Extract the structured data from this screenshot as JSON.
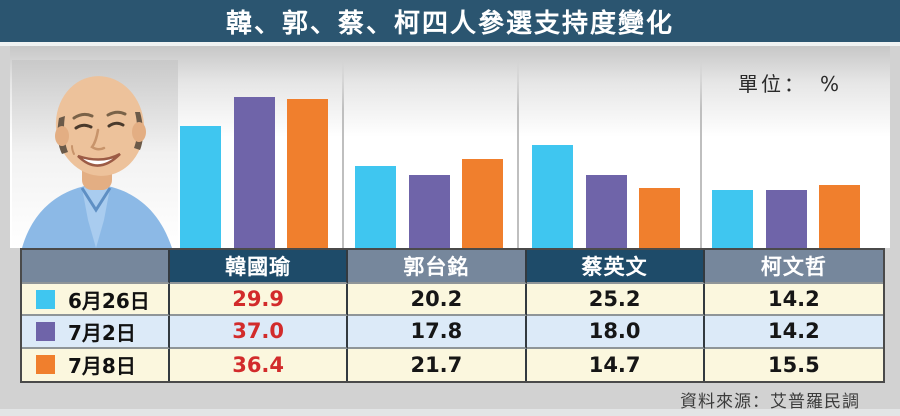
{
  "title": "韓、郭、蔡、柯四人參選支持度變化",
  "unit_label": "單位：　%",
  "source": "資料來源：艾普羅民調",
  "colors": {
    "titlebar_bg": "#2B5570",
    "header_dark": "#1E4B69",
    "header_slate": "#76879C",
    "row_cream": "#FBF7DE",
    "row_blue": "#DCEAF8",
    "highlight_value": "#D22B2B",
    "series_cyan": "#3FC6F0",
    "series_purple": "#6F64A9",
    "series_orange": "#F07F2D"
  },
  "portrait_alt": "韓國瑜照片",
  "chart_data": {
    "type": "bar",
    "title": "韓、郭、蔡、柯四人參選支持度變化",
    "unit": "%",
    "categories": [
      "韓國瑜",
      "郭台銘",
      "蔡英文",
      "柯文哲"
    ],
    "series": [
      {
        "name": "6月26日",
        "color": "#3FC6F0",
        "values": [
          29.9,
          20.2,
          25.2,
          14.2
        ]
      },
      {
        "name": "7月2日",
        "color": "#6F64A9",
        "values": [
          37.0,
          17.8,
          18.0,
          14.2
        ]
      },
      {
        "name": "7月8日",
        "color": "#F07F2D",
        "values": [
          36.4,
          21.7,
          14.7,
          15.5
        ]
      }
    ],
    "ylim": [
      0,
      40
    ],
    "grid": false,
    "legend_position": "table-left-column",
    "xlabel": "",
    "ylabel": ""
  },
  "table": {
    "corner": "",
    "columns": [
      "韓國瑜",
      "郭台銘",
      "蔡英文",
      "柯文哲"
    ],
    "rows": [
      {
        "date": "6月26日",
        "values": [
          "29.9",
          "20.2",
          "25.2",
          "14.2"
        ]
      },
      {
        "date": "7月2日",
        "values": [
          "37.0",
          "17.8",
          "18.0",
          "14.2"
        ]
      },
      {
        "date": "7月8日",
        "values": [
          "36.4",
          "21.7",
          "14.7",
          "15.5"
        ]
      }
    ]
  }
}
